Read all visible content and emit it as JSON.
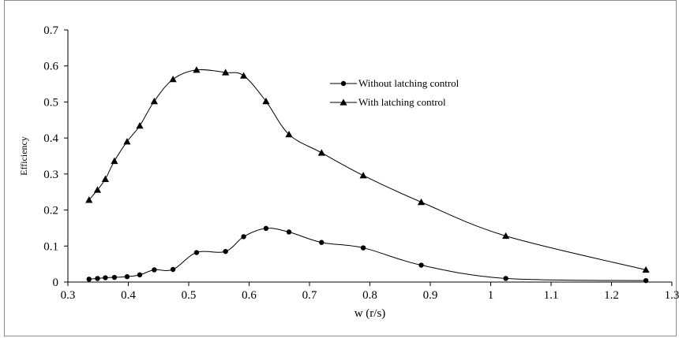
{
  "chart_data": {
    "type": "line",
    "title": "",
    "xlabel": "w (r/s)",
    "ylabel": "Efficiency",
    "xlim": [
      0.3,
      1.3
    ],
    "ylim": [
      0,
      0.7
    ],
    "xticks": [
      "0.3",
      "0.4",
      "0.5",
      "0.6",
      "0.7",
      "0.8",
      "0.9",
      "1",
      "1.1",
      "1.2",
      "1.3"
    ],
    "yticks": [
      "0",
      "0.1",
      "0.2",
      "0.3",
      "0.4",
      "0.5",
      "0.6",
      "0.7"
    ],
    "grid": false,
    "legend_position": "upper-right",
    "series": [
      {
        "name": "Without latching control",
        "marker": "circle",
        "color": "#000000",
        "x": [
          0.335,
          0.349,
          0.362,
          0.377,
          0.398,
          0.419,
          0.443,
          0.474,
          0.513,
          0.561,
          0.591,
          0.628,
          0.666,
          0.72,
          0.789,
          0.885,
          1.025,
          1.257
        ],
        "y": [
          0.008,
          0.01,
          0.012,
          0.013,
          0.015,
          0.02,
          0.034,
          0.035,
          0.082,
          0.085,
          0.126,
          0.149,
          0.139,
          0.11,
          0.095,
          0.047,
          0.01,
          0.004
        ]
      },
      {
        "name": "With latching control",
        "marker": "triangle",
        "color": "#000000",
        "x": [
          0.335,
          0.349,
          0.362,
          0.377,
          0.398,
          0.419,
          0.443,
          0.474,
          0.513,
          0.561,
          0.591,
          0.628,
          0.666,
          0.72,
          0.789,
          0.885,
          1.025,
          1.257
        ],
        "y": [
          0.228,
          0.256,
          0.286,
          0.336,
          0.39,
          0.434,
          0.502,
          0.563,
          0.589,
          0.582,
          0.573,
          0.502,
          0.41,
          0.359,
          0.296,
          0.222,
          0.128,
          0.034
        ]
      }
    ]
  }
}
